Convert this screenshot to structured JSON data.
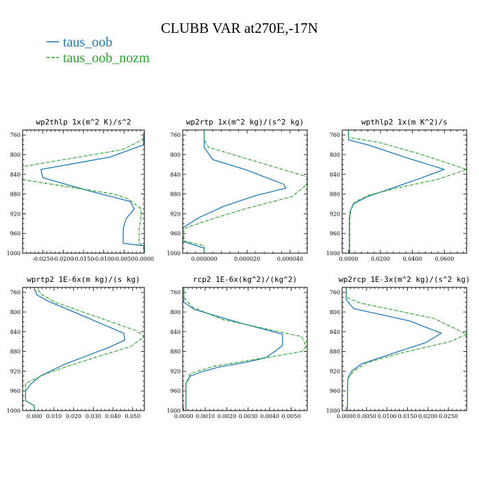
{
  "title": "CLUBB VAR at270E,-17N",
  "colors": {
    "taus_oob": "#1f77b4",
    "taus_oob_nozm": "#2ca02c"
  },
  "legend": [
    {
      "label": "taus_oob",
      "color": "#1f77b4",
      "style": "solid"
    },
    {
      "label": "taus_oob_nozm",
      "color": "#2ca02c",
      "style": "dashed"
    }
  ],
  "chart_data": [
    {
      "type": "line",
      "title": "wp2thlp  1x(m^2 K)/s^2",
      "xlim": [
        -0.03,
        0.0
      ],
      "xticks": [
        -0.025,
        -0.02,
        -0.015,
        -0.01,
        -0.005,
        0.0
      ],
      "xticklabels": [
        "-0.0250",
        "-0.0200",
        "-0.0150",
        "-0.0100",
        "-0.0050",
        "0.0000"
      ],
      "ylim": [
        1000,
        750
      ],
      "yticks": [
        760,
        800,
        840,
        880,
        920,
        960,
        1000
      ],
      "series": [
        {
          "name": "taus_oob",
          "x": [
            -0.0001,
            -0.0002,
            -0.0085,
            -0.0255,
            -0.025,
            -0.013,
            -0.0035,
            -0.0025,
            -0.0045,
            -0.0052,
            -0.0052,
            -0.0001,
            -0.0001
          ],
          "y": [
            755,
            780,
            805,
            830,
            847,
            875,
            895,
            910,
            930,
            950,
            980,
            985,
            1000
          ]
        },
        {
          "name": "taus_oob_nozm",
          "x": [
            -0.0001,
            -0.0005,
            -0.0055,
            -0.0305,
            -0.0305,
            -0.0075,
            -0.004,
            -0.0008,
            -0.0009,
            -0.0013,
            -0.0013,
            -0.0001,
            -0.0001
          ],
          "y": [
            755,
            770,
            790,
            825,
            850,
            880,
            890,
            910,
            930,
            950,
            980,
            985,
            1000
          ]
        }
      ]
    },
    {
      "type": "line",
      "title": "wp2rtp  1x(m^2 kg)/(s^2 kg)",
      "xlim": [
        -1e-05,
        4.8e-05
      ],
      "xticks": [
        0.0,
        2e-05,
        4e-05
      ],
      "xticklabels": [
        "0.000000",
        "0.000020",
        "0.000040"
      ],
      "ylim": [
        1000,
        750
      ],
      "yticks": [
        760,
        800,
        840,
        880,
        920,
        960,
        1000
      ],
      "series": [
        {
          "name": "taus_oob",
          "x": [
            0.0,
            0.0,
            4e-06,
            1.9e-05,
            3.7e-05,
            3.8e-05,
            2.4e-05,
            9e-06,
            -2.5e-06,
            -1.05e-05,
            -1.05e-05,
            0.0,
            0.0
          ],
          "y": [
            750,
            785,
            810,
            830,
            860,
            868,
            883,
            905,
            928,
            950,
            975,
            990,
            1000
          ]
        },
        {
          "name": "taus_oob_nozm",
          "x": [
            0.0,
            0.0,
            2e-06,
            2.5e-05,
            4.8e-05,
            4.8e-05,
            4.1e-05,
            1.9e-05,
            4e-06,
            -9.5e-06,
            -9.5e-06,
            0.0,
            0.0
          ],
          "y": [
            750,
            770,
            785,
            815,
            845,
            860,
            885,
            910,
            930,
            950,
            975,
            985,
            1000
          ]
        }
      ]
    },
    {
      "type": "line",
      "title": "wpthlp2  1x(m K^2)/s",
      "xlim": [
        -0.004,
        0.074
      ],
      "xticks": [
        0.0,
        0.02,
        0.04,
        0.06
      ],
      "xticklabels": [
        "0.0000",
        "0.0200",
        "0.0400",
        "0.0600"
      ],
      "ylim": [
        1000,
        750
      ],
      "yticks": [
        760,
        800,
        840,
        880,
        920,
        960,
        1000
      ],
      "series": [
        {
          "name": "taus_oob",
          "x": [
            0.0,
            0.0,
            0.012,
            0.038,
            0.06,
            0.044,
            0.03,
            0.012,
            0.003,
            0.001,
            0.0005,
            0.0005,
            0.0005
          ],
          "y": [
            750,
            770,
            780,
            808,
            830,
            849,
            865,
            885,
            900,
            915,
            930,
            960,
            1000
          ]
        },
        {
          "name": "taus_oob_nozm",
          "x": [
            0.0,
            0.0,
            0.019,
            0.046,
            0.074,
            0.056,
            0.03,
            0.013,
            0.004,
            0.0015,
            0.0008,
            0.0008,
            0.0008
          ],
          "y": [
            750,
            765,
            775,
            800,
            830,
            850,
            868,
            882,
            896,
            912,
            930,
            960,
            1000
          ]
        }
      ]
    },
    {
      "type": "line",
      "title": "wprtp2  1E-6x(m kg)/(s kg)",
      "xlim": [
        -0.006,
        0.056
      ],
      "xticks": [
        0.0,
        0.01,
        0.02,
        0.03,
        0.04,
        0.05
      ],
      "xticklabels": [
        "0.000",
        "0.010",
        "0.020",
        "0.030",
        "0.040",
        "0.050"
      ],
      "ylim": [
        1000,
        750
      ],
      "yticks": [
        760,
        800,
        840,
        880,
        920,
        960,
        1000
      ],
      "series": [
        {
          "name": "taus_oob",
          "x": [
            0.0005,
            0.0012,
            0.0065,
            0.0455,
            0.046,
            0.039,
            0.026,
            0.016,
            0.003,
            -0.0015,
            -0.0045,
            -0.0045,
            0.0,
            0.0
          ],
          "y": [
            755,
            765,
            777,
            843,
            857,
            870,
            890,
            905,
            930,
            945,
            960,
            980,
            990,
            1000
          ]
        },
        {
          "name": "taus_oob_nozm",
          "x": [
            0.002,
            0.004,
            0.0105,
            0.052,
            0.056,
            0.049,
            0.031,
            0.017,
            0.006,
            -0.0045,
            -0.0045,
            0.0,
            0.0
          ],
          "y": [
            755,
            765,
            780,
            838,
            850,
            870,
            892,
            910,
            925,
            945,
            980,
            990,
            1000
          ]
        }
      ]
    },
    {
      "type": "line",
      "title": "rcp2  1E-6x(kg^2)/(kg^2)",
      "xlim": [
        -5e-05,
        0.00575
      ],
      "xticks": [
        0.0,
        0.001,
        0.002,
        0.003,
        0.004,
        0.005
      ],
      "xticklabels": [
        "0.0000",
        "0.0010",
        "0.0020",
        "0.0030",
        "0.0040",
        "0.0050"
      ],
      "ylim": [
        1000,
        750
      ],
      "yticks": [
        760,
        800,
        840,
        880,
        920,
        960,
        1000
      ],
      "series": [
        {
          "name": "taus_oob",
          "x": [
            0.0,
            0.0,
            0.0005,
            0.0026,
            0.0046,
            0.0046,
            0.0043,
            0.0038,
            0.0029,
            0.0016,
            0.0008,
            0.0003,
            0.0001,
            0.0001,
            0.0001
          ],
          "y": [
            750,
            780,
            795,
            822,
            845,
            868,
            878,
            893,
            902,
            912,
            922,
            930,
            945,
            970,
            1000
          ]
        },
        {
          "name": "taus_oob_nozm",
          "x": [
            0.0,
            0.0,
            0.0004,
            0.0018,
            0.0055,
            0.0057,
            0.0055,
            0.0042,
            0.0032,
            0.0014,
            0.0003,
            0.0001,
            0.0001,
            0.0001
          ],
          "y": [
            750,
            770,
            790,
            815,
            850,
            870,
            880,
            890,
            897,
            910,
            925,
            945,
            970,
            1000
          ]
        }
      ]
    },
    {
      "type": "line",
      "title": "wp2rcp  1E-3x(m^2 kg)/(s^2 kg)",
      "xlim": [
        -0.001,
        0.0295
      ],
      "xticks": [
        0.0,
        0.005,
        0.01,
        0.015,
        0.02,
        0.025
      ],
      "xticklabels": [
        "0.0000",
        "0.0050",
        "0.0100",
        "0.0150",
        "0.0200",
        "0.0250"
      ],
      "ylim": [
        1000,
        750
      ],
      "yticks": [
        760,
        800,
        840,
        880,
        920,
        960,
        1000
      ],
      "series": [
        {
          "name": "taus_oob",
          "x": [
            0.0,
            0.0,
            0.0018,
            0.0155,
            0.0233,
            0.0195,
            0.011,
            0.0038,
            0.0013,
            0.0004,
            0.0003,
            0.0003
          ],
          "y": [
            750,
            775,
            793,
            818,
            843,
            862,
            885,
            905,
            920,
            935,
            960,
            1000
          ]
        },
        {
          "name": "taus_oob_nozm",
          "x": [
            0.0,
            0.0,
            0.0035,
            0.0215,
            0.0295,
            0.0255,
            0.0135,
            0.005,
            0.0018,
            0.0004,
            0.0003,
            0.0003
          ],
          "y": [
            750,
            770,
            782,
            813,
            845,
            860,
            883,
            903,
            920,
            935,
            960,
            1000
          ]
        }
      ]
    }
  ]
}
